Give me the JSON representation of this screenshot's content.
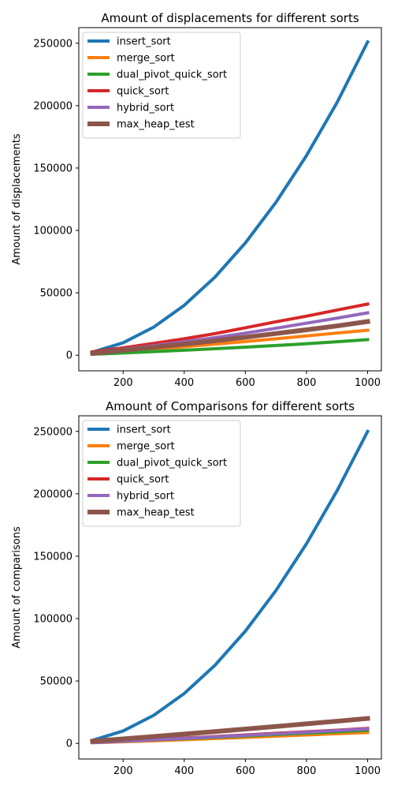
{
  "chart_data": [
    {
      "type": "line",
      "title": "Amount of displacements for different sorts",
      "xlabel": "",
      "ylabel": "Amount of displacements",
      "x": [
        100,
        200,
        300,
        400,
        500,
        600,
        700,
        800,
        900,
        1000
      ],
      "xlim": [
        55,
        1045
      ],
      "ylim": [
        -12500,
        262500
      ],
      "xticks": [
        200,
        400,
        600,
        800,
        1000
      ],
      "yticks": [
        0,
        50000,
        100000,
        150000,
        200000,
        250000
      ],
      "legend_position": "top-left",
      "series": [
        {
          "name": "insert_sort",
          "color": "#1f77b4",
          "values": [
            2500,
            10000,
            22500,
            40000,
            62500,
            90000,
            122500,
            160000,
            202500,
            251000
          ]
        },
        {
          "name": "merge_sort",
          "color": "#ff7f0e",
          "values": [
            1300,
            2900,
            4800,
            6800,
            8900,
            11000,
            13200,
            15500,
            17800,
            20000
          ]
        },
        {
          "name": "dual_pivot_quick_sort",
          "color": "#2ca02c",
          "values": [
            800,
            1800,
            2900,
            4000,
            5200,
            6500,
            7800,
            9200,
            10800,
            12500
          ]
        },
        {
          "name": "quick_sort",
          "color": "#d62728",
          "values": [
            2800,
            5900,
            9500,
            13200,
            17300,
            22000,
            26800,
            31300,
            36200,
            41000
          ]
        },
        {
          "name": "hybrid_sort",
          "color": "#9467bd",
          "values": [
            2100,
            4800,
            7700,
            10800,
            14100,
            17700,
            21600,
            25700,
            29700,
            34000
          ]
        },
        {
          "name": "max_heap_test",
          "color": "#8c564b",
          "values": [
            1500,
            4000,
            6400,
            8900,
            11600,
            14400,
            17400,
            20400,
            23500,
            27000
          ]
        }
      ]
    },
    {
      "type": "line",
      "title": "Amount of Comparisons for different sorts",
      "xlabel": "",
      "ylabel": "Amount of comparisons",
      "x": [
        100,
        200,
        300,
        400,
        500,
        600,
        700,
        800,
        900,
        1000
      ],
      "xlim": [
        55,
        1045
      ],
      "ylim": [
        -12500,
        262500
      ],
      "xticks": [
        200,
        400,
        600,
        800,
        1000
      ],
      "yticks": [
        0,
        50000,
        100000,
        150000,
        200000,
        250000
      ],
      "legend_position": "top-left",
      "series": [
        {
          "name": "insert_sort",
          "color": "#1f77b4",
          "values": [
            2500,
            10000,
            22500,
            40000,
            62500,
            90000,
            122500,
            160000,
            202500,
            250000
          ]
        },
        {
          "name": "merge_sort",
          "color": "#ff7f0e",
          "values": [
            550,
            1300,
            2100,
            3000,
            3900,
            4800,
            5800,
            6800,
            7800,
            8700
          ]
        },
        {
          "name": "dual_pivot_quick_sort",
          "color": "#2ca02c",
          "values": [
            700,
            1700,
            2800,
            3800,
            4900,
            6000,
            7100,
            8200,
            9300,
            10500
          ]
        },
        {
          "name": "quick_sort",
          "color": "#d62728",
          "values": [
            800,
            1900,
            3100,
            4300,
            5500,
            6800,
            8100,
            9300,
            10600,
            12000
          ]
        },
        {
          "name": "hybrid_sort",
          "color": "#9467bd",
          "values": [
            700,
            1800,
            2900,
            4100,
            5300,
            6500,
            7700,
            9000,
            10300,
            11600
          ]
        },
        {
          "name": "max_heap_test",
          "color": "#8c564b",
          "values": [
            1700,
            3600,
            5500,
            7500,
            9500,
            11500,
            13600,
            15700,
            17800,
            20000
          ]
        }
      ]
    }
  ]
}
